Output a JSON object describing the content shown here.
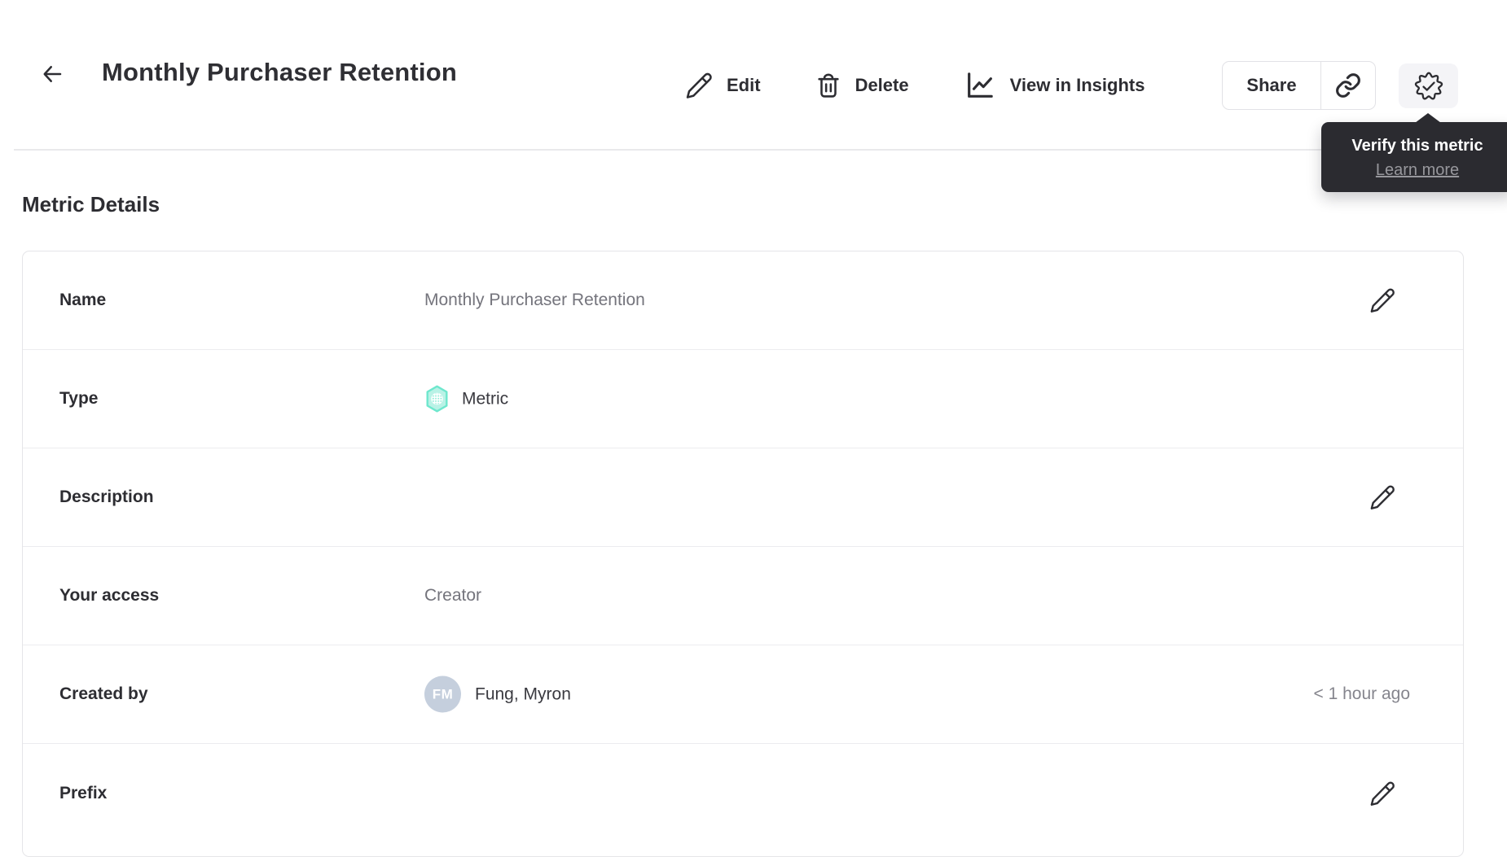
{
  "header": {
    "title": "Monthly Purchaser Retention",
    "back_icon": "arrow-left-icon",
    "actions": {
      "edit": {
        "label": "Edit",
        "icon": "pencil-icon"
      },
      "delete": {
        "label": "Delete",
        "icon": "trash-icon"
      },
      "insights": {
        "label": "View in Insights",
        "icon": "line-chart-icon"
      }
    },
    "share_label": "Share",
    "copy_link_icon": "link-icon",
    "verify_icon": "verified-seal-icon"
  },
  "tooltip": {
    "title": "Verify this metric",
    "link_label": "Learn more"
  },
  "section": {
    "title": "Metric Details"
  },
  "details": {
    "rows": [
      {
        "label": "Name",
        "value": "Monthly Purchaser Retention",
        "editable": true
      },
      {
        "label": "Type",
        "value": "Metric",
        "icon": "metric-hexagon-icon"
      },
      {
        "label": "Description",
        "value": "",
        "editable": true
      },
      {
        "label": "Your access",
        "value": "Creator"
      },
      {
        "label": "Created by",
        "value": "Fung, Myron",
        "avatar_initials": "FM",
        "timestamp": "< 1 hour ago"
      },
      {
        "label": "Prefix",
        "value": "",
        "editable": true
      }
    ]
  },
  "colors": {
    "text_primary": "#2d2d32",
    "text_value_muted": "#74747c",
    "text_timestamp": "#85858d",
    "divider": "#ececef",
    "card_border": "#e5e5e8",
    "tooltip_bg": "#2b2b30",
    "tooltip_link": "#97979c",
    "verify_btn_bg": "#f4f4f7",
    "metric_icon_fill": "#b9f2e6",
    "metric_icon_stroke": "#6ee7cd",
    "avatar_bg": "#c5cfdd"
  }
}
